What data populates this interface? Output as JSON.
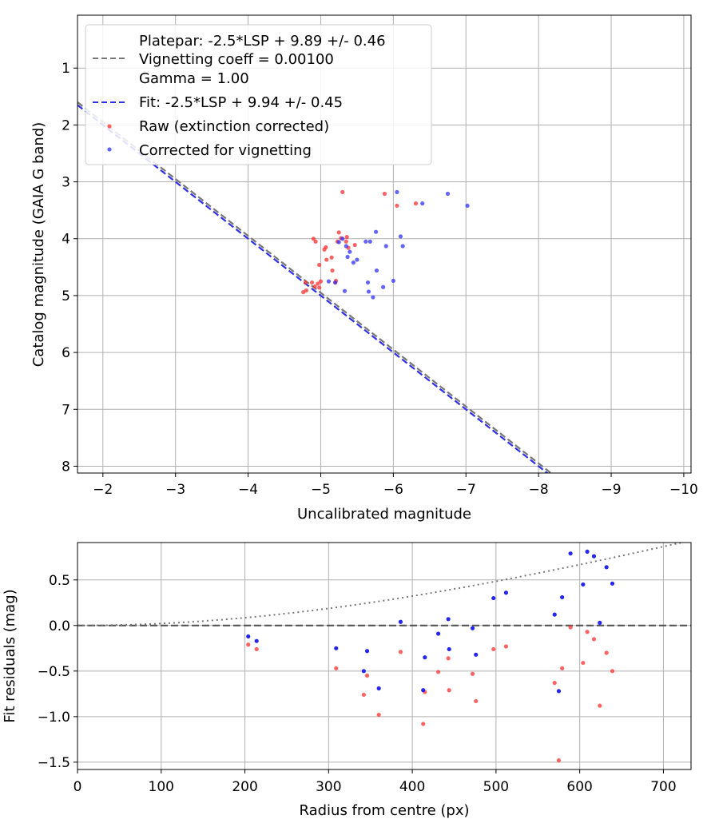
{
  "chart_data": [
    {
      "type": "scatter",
      "xlabel": "Uncalibrated magnitude",
      "ylabel": "Catalog magnitude (GAIA G band)",
      "xlim": [
        -1.65,
        -10.1
      ],
      "ylim": [
        8.12,
        0.07
      ],
      "x_inverted": true,
      "y_inverted": true,
      "xticks": [
        -2,
        -3,
        -4,
        -5,
        -6,
        -7,
        -8,
        -9,
        -10
      ],
      "xtick_labels": [
        "−2",
        "−3",
        "−4",
        "−5",
        "−6",
        "−7",
        "−8",
        "−9",
        "−10"
      ],
      "yticks": [
        1,
        2,
        3,
        4,
        5,
        6,
        7,
        8
      ],
      "ytick_labels": [
        "1",
        "2",
        "3",
        "4",
        "5",
        "6",
        "7",
        "8"
      ],
      "grid": true,
      "legend_position": "top-left",
      "legend": [
        "Platepar: -2.5*LSP + 9.89 +/- 0.46\nVignetting coeff = 0.00100\nGamma = 1.00",
        "Fit: -2.5*LSP + 9.94 +/- 0.45",
        "Raw (extinction corrected)",
        "Corrected for vignetting"
      ],
      "lines": [
        {
          "name": "Platepar: -2.5*LSP + 9.89 +/- 0.46\nVignetting coeff = 0.00100\nGamma = 1.00",
          "style": "dashed",
          "color": "#777777",
          "slope": -1,
          "intercept": -2.5,
          "offset": 9.89
        },
        {
          "name": "Fit: -2.5*LSP + 9.94 +/- 0.45",
          "style": "dashed",
          "color": "#3030e8",
          "slope": -1,
          "offset": 9.94
        }
      ],
      "series": [
        {
          "name": "Raw (extinction corrected)",
          "color": "#ff3030",
          "points": [
            [
              -4.76,
              4.94
            ],
            [
              -4.8,
              4.91
            ],
            [
              -4.79,
              4.77
            ],
            [
              -4.88,
              4.77
            ],
            [
              -4.92,
              4.84
            ],
            [
              -4.96,
              4.79
            ],
            [
              -4.98,
              4.86
            ],
            [
              -5.0,
              4.75
            ],
            [
              -4.9,
              4.0
            ],
            [
              -4.93,
              4.05
            ],
            [
              -4.98,
              4.46
            ],
            [
              -5.05,
              4.19
            ],
            [
              -5.07,
              4.15
            ],
            [
              -5.08,
              4.37
            ],
            [
              -5.15,
              4.33
            ],
            [
              -5.16,
              4.56
            ],
            [
              -5.2,
              4.77
            ],
            [
              -5.21,
              4.74
            ],
            [
              -5.23,
              4.05
            ],
            [
              -5.25,
              3.89
            ],
            [
              -5.28,
              3.99
            ],
            [
              -5.3,
              3.18
            ],
            [
              -5.35,
              4.05
            ],
            [
              -5.36,
              3.97
            ],
            [
              -5.38,
              4.16
            ],
            [
              -5.47,
              4.11
            ],
            [
              -5.88,
              3.21
            ],
            [
              -6.05,
              3.42
            ],
            [
              -6.31,
              3.38
            ]
          ]
        },
        {
          "name": "Corrected for vignetting",
          "color": "#3030ff",
          "points": [
            [
              -5.11,
              4.75
            ],
            [
              -5.2,
              4.77
            ],
            [
              -5.25,
              4.06
            ],
            [
              -5.3,
              4.0
            ],
            [
              -5.33,
              4.92
            ],
            [
              -5.35,
              4.13
            ],
            [
              -5.37,
              4.32
            ],
            [
              -5.4,
              4.23
            ],
            [
              -5.45,
              4.42
            ],
            [
              -5.5,
              4.37
            ],
            [
              -5.62,
              4.05
            ],
            [
              -5.65,
              4.77
            ],
            [
              -5.66,
              4.93
            ],
            [
              -5.68,
              4.05
            ],
            [
              -5.72,
              5.03
            ],
            [
              -5.76,
              3.88
            ],
            [
              -5.77,
              4.56
            ],
            [
              -5.86,
              4.85
            ],
            [
              -5.9,
              4.13
            ],
            [
              -6.0,
              4.74
            ],
            [
              -6.05,
              3.18
            ],
            [
              -6.1,
              3.96
            ],
            [
              -6.13,
              4.13
            ],
            [
              -6.4,
              3.38
            ],
            [
              -6.75,
              3.21
            ],
            [
              -7.02,
              3.42
            ]
          ]
        }
      ]
    },
    {
      "type": "scatter",
      "xlabel": "Radius from centre (px)",
      "ylabel": "Fit residuals (mag)",
      "xlim": [
        0,
        733
      ],
      "ylim": [
        -1.58,
        0.91
      ],
      "xticks": [
        0,
        100,
        200,
        300,
        400,
        500,
        600,
        700
      ],
      "xtick_labels": [
        "0",
        "100",
        "200",
        "300",
        "400",
        "500",
        "600",
        "700"
      ],
      "yticks": [
        0.5,
        0.0,
        -0.5,
        -1.0,
        -1.5
      ],
      "ytick_labels": [
        "0.5",
        "0.0",
        "−0.5",
        "−1.0",
        "−1.5"
      ],
      "grid": true,
      "zero_line": 0,
      "vignetting_curve_coeff": 0.001,
      "series": [
        {
          "name": "",
          "color": "#ff3030",
          "points": [
            [
              204,
              -0.21
            ],
            [
              214,
              -0.26
            ],
            [
              309,
              -0.47
            ],
            [
              342,
              -0.76
            ],
            [
              346,
              -0.55
            ],
            [
              360,
              -0.98
            ],
            [
              386,
              -0.29
            ],
            [
              413,
              -1.08
            ],
            [
              415,
              -0.73
            ],
            [
              431,
              -0.51
            ],
            [
              443,
              -0.36
            ],
            [
              444,
              -0.71
            ],
            [
              472,
              -0.53
            ],
            [
              476,
              -0.83
            ],
            [
              497,
              -0.26
            ],
            [
              512,
              -0.23
            ],
            [
              570,
              -0.63
            ],
            [
              575,
              -1.48
            ],
            [
              579,
              -0.47
            ],
            [
              589,
              -0.02
            ],
            [
              604,
              -0.41
            ],
            [
              609,
              -0.07
            ],
            [
              617,
              -0.15
            ],
            [
              624,
              -0.88
            ],
            [
              632,
              -0.3
            ],
            [
              639,
              -0.5
            ]
          ]
        },
        {
          "name": "",
          "color": "#1a1aee",
          "points": [
            [
              204,
              -0.12
            ],
            [
              214,
              -0.17
            ],
            [
              309,
              -0.25
            ],
            [
              342,
              -0.5
            ],
            [
              346,
              -0.28
            ],
            [
              360,
              -0.69
            ],
            [
              386,
              0.04
            ],
            [
              413,
              -0.71
            ],
            [
              415,
              -0.35
            ],
            [
              431,
              -0.09
            ],
            [
              443,
              0.07
            ],
            [
              444,
              -0.26
            ],
            [
              472,
              -0.03
            ],
            [
              476,
              -0.32
            ],
            [
              497,
              0.3
            ],
            [
              512,
              0.36
            ],
            [
              570,
              0.12
            ],
            [
              575,
              -0.72
            ],
            [
              579,
              0.31
            ],
            [
              589,
              0.79
            ],
            [
              604,
              0.45
            ],
            [
              609,
              0.81
            ],
            [
              617,
              0.76
            ],
            [
              624,
              0.03
            ],
            [
              632,
              0.64
            ],
            [
              639,
              0.46
            ]
          ]
        }
      ]
    }
  ]
}
